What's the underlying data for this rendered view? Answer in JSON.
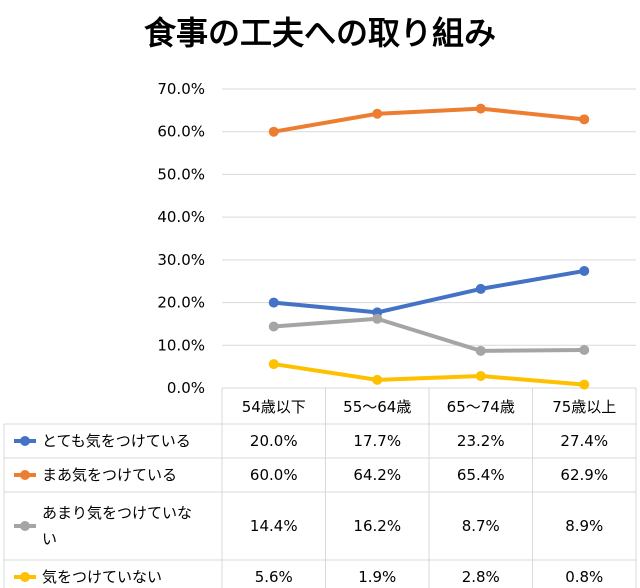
{
  "chart_data": {
    "type": "line",
    "title": "食事の工夫への取り組み",
    "xlabel": "",
    "ylabel": "",
    "ylim": [
      0,
      70
    ],
    "yticks": [
      "0.0%",
      "10.0%",
      "20.0%",
      "30.0%",
      "40.0%",
      "50.0%",
      "60.0%",
      "70.0%"
    ],
    "categories": [
      "54歳以下",
      "55～64歳",
      "65～74歳",
      "75歳以上"
    ],
    "grid": true,
    "legend": "data-table",
    "series": [
      {
        "name": "とても気をつけている",
        "label_lines": [
          "とても気をつけている"
        ],
        "color": "#4472C4",
        "values": [
          20.0,
          17.7,
          23.2,
          27.4
        ],
        "labels": [
          "20.0%",
          "17.7%",
          "23.2%",
          "27.4%"
        ]
      },
      {
        "name": "まあ気をつけている",
        "label_lines": [
          "まあ気をつけている"
        ],
        "color": "#ED7D31",
        "values": [
          60.0,
          64.2,
          65.4,
          62.9
        ],
        "labels": [
          "60.0%",
          "64.2%",
          "65.4%",
          "62.9%"
        ]
      },
      {
        "name": "あまり気をつけていない",
        "label_lines": [
          "あまり気をつけていな",
          "い"
        ],
        "color": "#A5A5A5",
        "values": [
          14.4,
          16.2,
          8.7,
          8.9
        ],
        "labels": [
          "14.4%",
          "16.2%",
          "8.7%",
          "8.9%"
        ]
      },
      {
        "name": "気をつけていない",
        "label_lines": [
          "気をつけていない"
        ],
        "color": "#FFC000",
        "values": [
          5.6,
          1.9,
          2.8,
          0.8
        ],
        "labels": [
          "5.6%",
          "1.9%",
          "2.8%",
          "0.8%"
        ]
      }
    ]
  }
}
